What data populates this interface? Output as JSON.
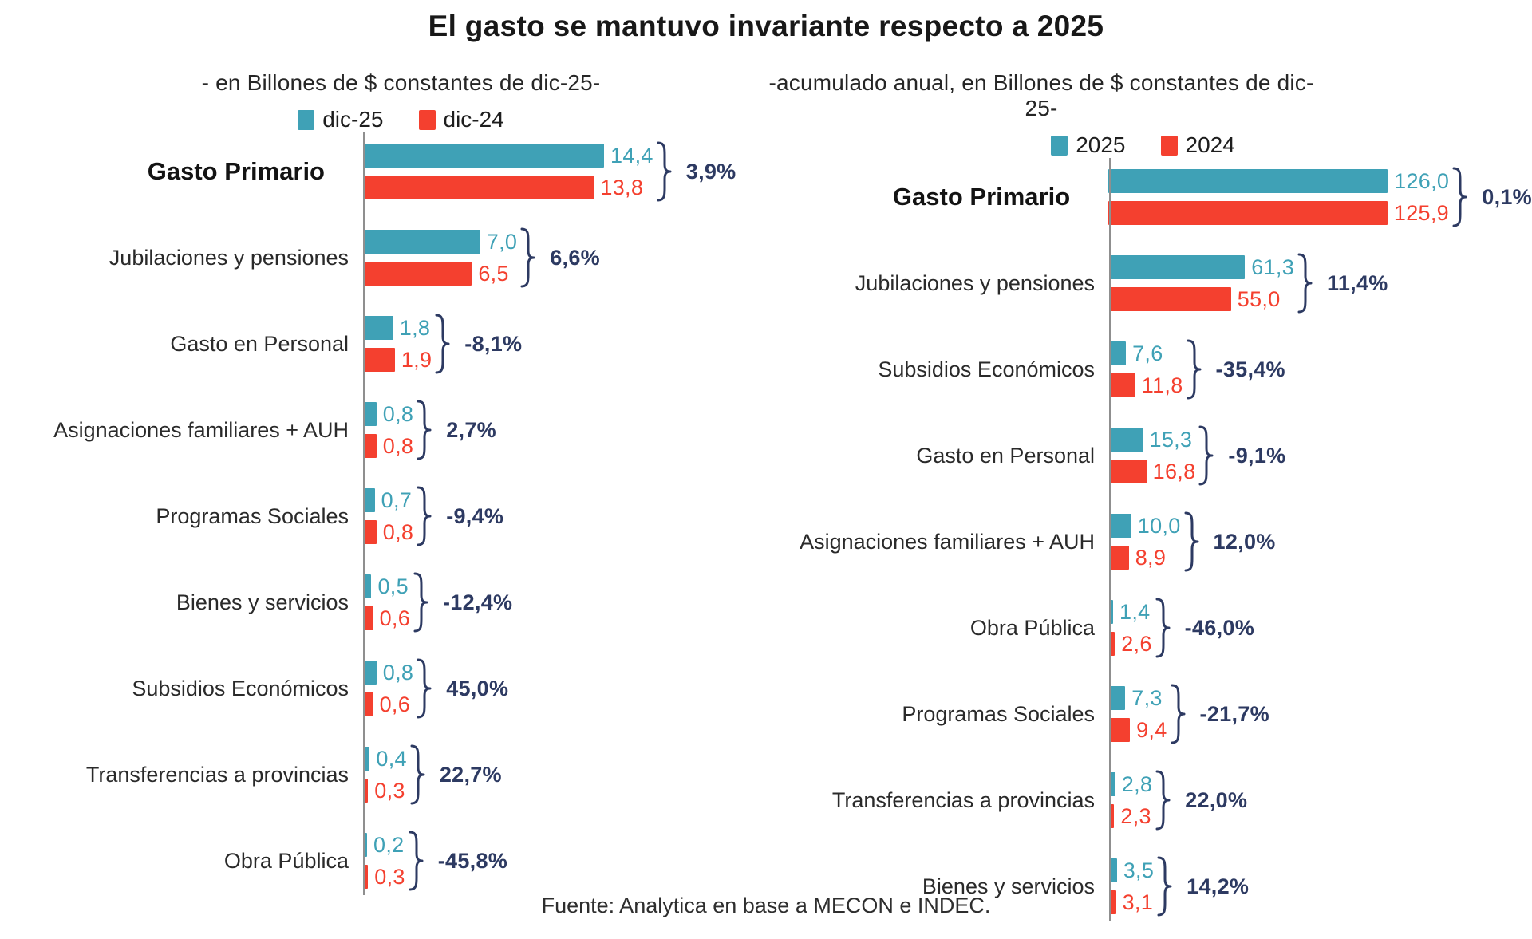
{
  "page": {
    "title": "El gasto se mantuvo invariante respecto a 2025",
    "footer": "Fuente: Analytica en base a MECON e INDEC."
  },
  "colors": {
    "series_current": "#3FA1B6",
    "series_previous": "#F4402F",
    "accent": "#2D3A62",
    "axis": "#8F8F8F"
  },
  "chart_data": [
    {
      "type": "bar",
      "orientation": "horizontal",
      "subtitle": "- en Billones de $ constantes de dic-25-",
      "legend": [
        {
          "label": "dic-25",
          "color": "#3FA1B6"
        },
        {
          "label": "dic-24",
          "color": "#F4402F"
        }
      ],
      "xlim": [
        0,
        14.4
      ],
      "grid": false,
      "categories": [
        "Gasto Primario",
        "Jubilaciones y pensiones",
        "Gasto en Personal",
        "Asignaciones familiares + AUH",
        "Programas Sociales",
        "Bienes y servicios",
        "Subsidios Económicos",
        "Transferencias a provincias",
        "Obra Pública"
      ],
      "series": [
        {
          "name": "dic-25",
          "values": [
            14.4,
            7.0,
            1.8,
            0.8,
            0.7,
            0.5,
            0.8,
            0.4,
            0.2
          ]
        },
        {
          "name": "dic-24",
          "values": [
            13.8,
            6.5,
            1.9,
            0.8,
            0.8,
            0.6,
            0.6,
            0.3,
            0.3
          ]
        }
      ],
      "value_labels": [
        [
          "14,4",
          "13,8"
        ],
        [
          "7,0",
          "6,5"
        ],
        [
          "1,8",
          "1,9"
        ],
        [
          "0,8",
          "0,8"
        ],
        [
          "0,7",
          "0,8"
        ],
        [
          "0,5",
          "0,6"
        ],
        [
          "0,8",
          "0,6"
        ],
        [
          "0,4",
          "0,3"
        ],
        [
          "0,2",
          "0,3"
        ]
      ],
      "pct_labels": [
        "3,9%",
        "6,6%",
        "-8,1%",
        "2,7%",
        "-9,4%",
        "-12,4%",
        "45,0%",
        "22,7%",
        "-45,8%"
      ]
    },
    {
      "type": "bar",
      "orientation": "horizontal",
      "subtitle": "-acumulado anual, en Billones de $ constantes de dic-25-",
      "legend": [
        {
          "label": "2025",
          "color": "#3FA1B6"
        },
        {
          "label": "2024",
          "color": "#F4402F"
        }
      ],
      "xlim": [
        0,
        126.0
      ],
      "grid": false,
      "categories": [
        "Gasto Primario",
        "Jubilaciones y pensiones",
        "Subsidios Económicos",
        "Gasto en Personal",
        "Asignaciones familiares + AUH",
        "Obra Pública",
        "Programas Sociales",
        "Transferencias a provincias",
        "Bienes y servicios"
      ],
      "series": [
        {
          "name": "2025",
          "values": [
            126.0,
            61.3,
            7.6,
            15.3,
            10.0,
            1.4,
            7.3,
            2.8,
            3.5
          ]
        },
        {
          "name": "2024",
          "values": [
            125.9,
            55.0,
            11.8,
            16.8,
            8.9,
            2.6,
            9.4,
            2.3,
            3.1
          ]
        }
      ],
      "value_labels": [
        [
          "126,0",
          "125,9"
        ],
        [
          "61,3",
          "55,0"
        ],
        [
          "7,6",
          "11,8"
        ],
        [
          "15,3",
          "16,8"
        ],
        [
          "10,0",
          "8,9"
        ],
        [
          "1,4",
          "2,6"
        ],
        [
          "7,3",
          "9,4"
        ],
        [
          "2,8",
          "2,3"
        ],
        [
          "3,5",
          "3,1"
        ]
      ],
      "pct_labels": [
        "0,1%",
        "11,4%",
        "-35,4%",
        "-9,1%",
        "12,0%",
        "-46,0%",
        "-21,7%",
        "22,0%",
        "14,2%"
      ]
    }
  ]
}
